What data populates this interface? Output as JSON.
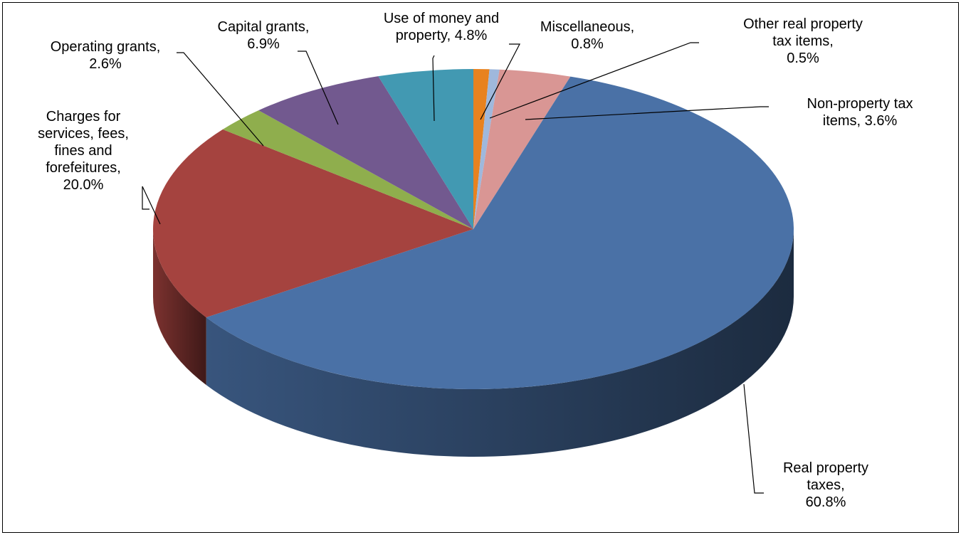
{
  "chart_data": {
    "type": "pie3d",
    "categories": [
      "Miscellaneous,",
      "Other real property tax items,",
      "Non-property tax items,",
      "Real property taxes,",
      "Charges for services, fees, fines and forefeitures,",
      "Operating grants,",
      "Capital grants,",
      "Use of money and property,"
    ],
    "values": [
      0.8,
      0.5,
      3.6,
      60.8,
      20.0,
      2.6,
      6.9,
      4.8
    ],
    "value_labels": [
      "0.8%",
      "0.5%",
      "3.6%",
      "60.8%",
      "20.0%",
      "2.6%",
      "6.9%",
      "4.8%"
    ],
    "colors": [
      "#e8821f",
      "#9fb8dc",
      "#d99694",
      "#4a71a6",
      "#a5433f",
      "#8fae4d",
      "#72598f",
      "#4299b2"
    ]
  }
}
